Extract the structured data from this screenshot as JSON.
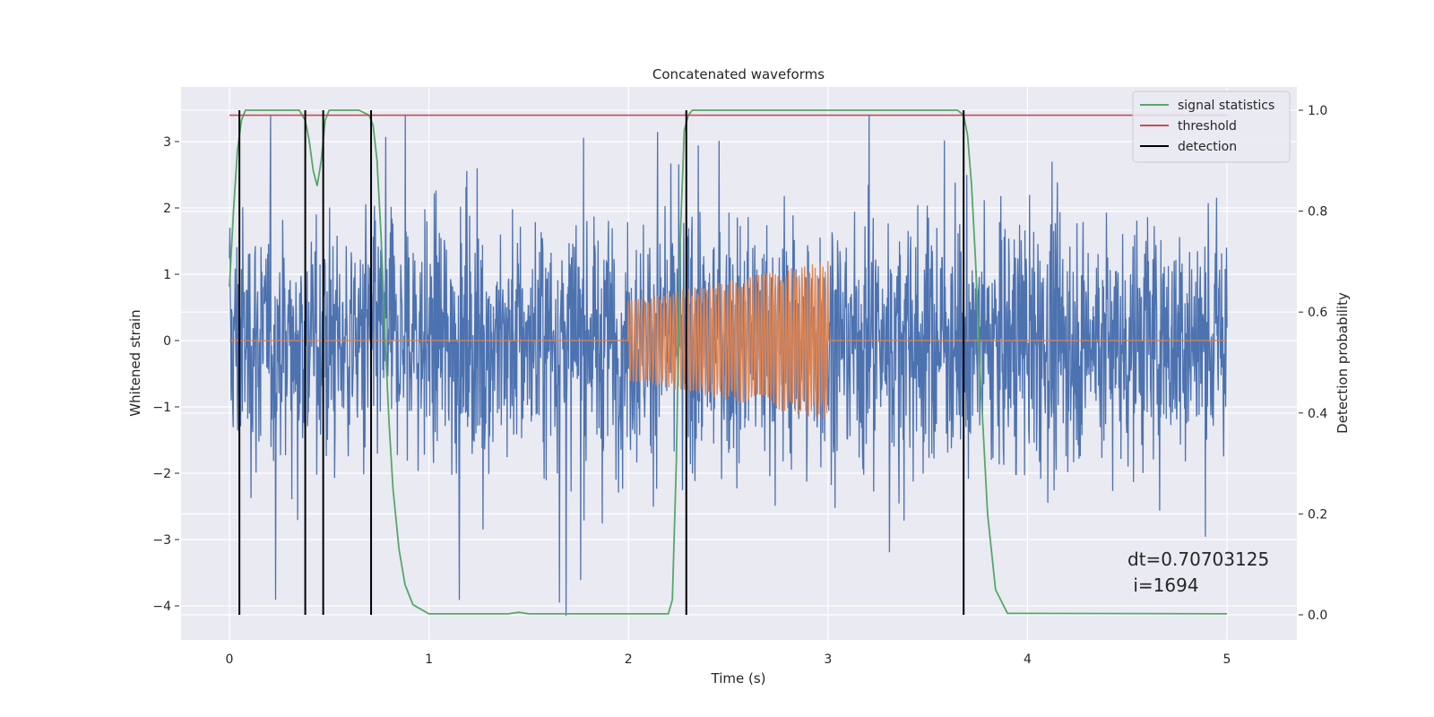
{
  "chart_data": {
    "type": "line",
    "title": "Concatenated waveforms",
    "xlabel": "Time (s)",
    "ylabel": "Whitened strain",
    "y2label": "Detection probability",
    "xlim": [
      -0.25,
      5.35
    ],
    "ylim": [
      -4.3,
      3.8
    ],
    "y2lim": [
      -0.045,
      1.04
    ],
    "xticks": [
      0,
      1,
      2,
      3,
      4,
      5
    ],
    "yticks": [
      -4,
      -3,
      -2,
      -1,
      0,
      1,
      2,
      3
    ],
    "y2ticks": [
      0.0,
      0.2,
      0.4,
      0.6,
      0.8,
      1.0
    ],
    "y2tick_labels": [
      "0.0",
      "0.2",
      "0.4",
      "0.6",
      "0.8",
      "1.0"
    ],
    "grid": true,
    "legend_position": "top-right",
    "annotation": [
      "dt=0.70703125",
      " i=1694"
    ],
    "series": [
      {
        "name": "",
        "axis": "left",
        "color": "#4c72b0",
        "kind": "noise",
        "x_range": [
          0,
          5
        ],
        "amplitude": 1.1,
        "peak_max": 3.4,
        "peak_min": -4.15
      },
      {
        "name": "",
        "axis": "left",
        "color": "#dd8452",
        "kind": "chirp",
        "x_range": [
          0,
          5
        ],
        "signal_range": [
          2,
          3
        ],
        "amp_start": 0.6,
        "amp_end": 1.2,
        "cycles": 60
      },
      {
        "name": "signal statistics",
        "axis": "right",
        "color": "#55a868",
        "x": [
          0,
          0.02,
          0.04,
          0.06,
          0.08,
          0.1,
          0.2,
          0.35,
          0.38,
          0.4,
          0.42,
          0.44,
          0.46,
          0.48,
          0.5,
          0.65,
          0.7,
          0.72,
          0.74,
          0.76,
          0.78,
          0.8,
          0.82,
          0.85,
          0.88,
          0.92,
          1.0,
          1.4,
          1.45,
          1.5,
          2.2,
          2.22,
          2.24,
          2.26,
          2.28,
          2.3,
          2.32,
          2.36,
          3.65,
          3.68,
          3.7,
          3.72,
          3.74,
          3.76,
          3.8,
          3.84,
          3.9,
          5.0
        ],
        "y": [
          0.65,
          0.8,
          0.92,
          0.98,
          1.0,
          1.0,
          1.0,
          1.0,
          0.98,
          0.94,
          0.88,
          0.85,
          0.9,
          0.98,
          1.0,
          1.0,
          0.99,
          0.97,
          0.9,
          0.75,
          0.55,
          0.38,
          0.25,
          0.13,
          0.06,
          0.02,
          0.002,
          0.002,
          0.005,
          0.002,
          0.002,
          0.03,
          0.3,
          0.75,
          0.96,
          0.99,
          1.0,
          1.0,
          1.0,
          0.99,
          0.95,
          0.85,
          0.7,
          0.5,
          0.2,
          0.05,
          0.003,
          0.002
        ]
      },
      {
        "name": "threshold",
        "axis": "right",
        "color": "#c44e52",
        "x": [
          0,
          5
        ],
        "y": [
          0.99,
          0.99
        ]
      },
      {
        "name": "detection",
        "axis": "right",
        "color": "#000000",
        "kind": "vlines",
        "x": [
          0.05,
          0.38,
          0.47,
          0.71,
          2.29,
          3.68
        ],
        "y_range": [
          0,
          1.0
        ]
      }
    ]
  }
}
